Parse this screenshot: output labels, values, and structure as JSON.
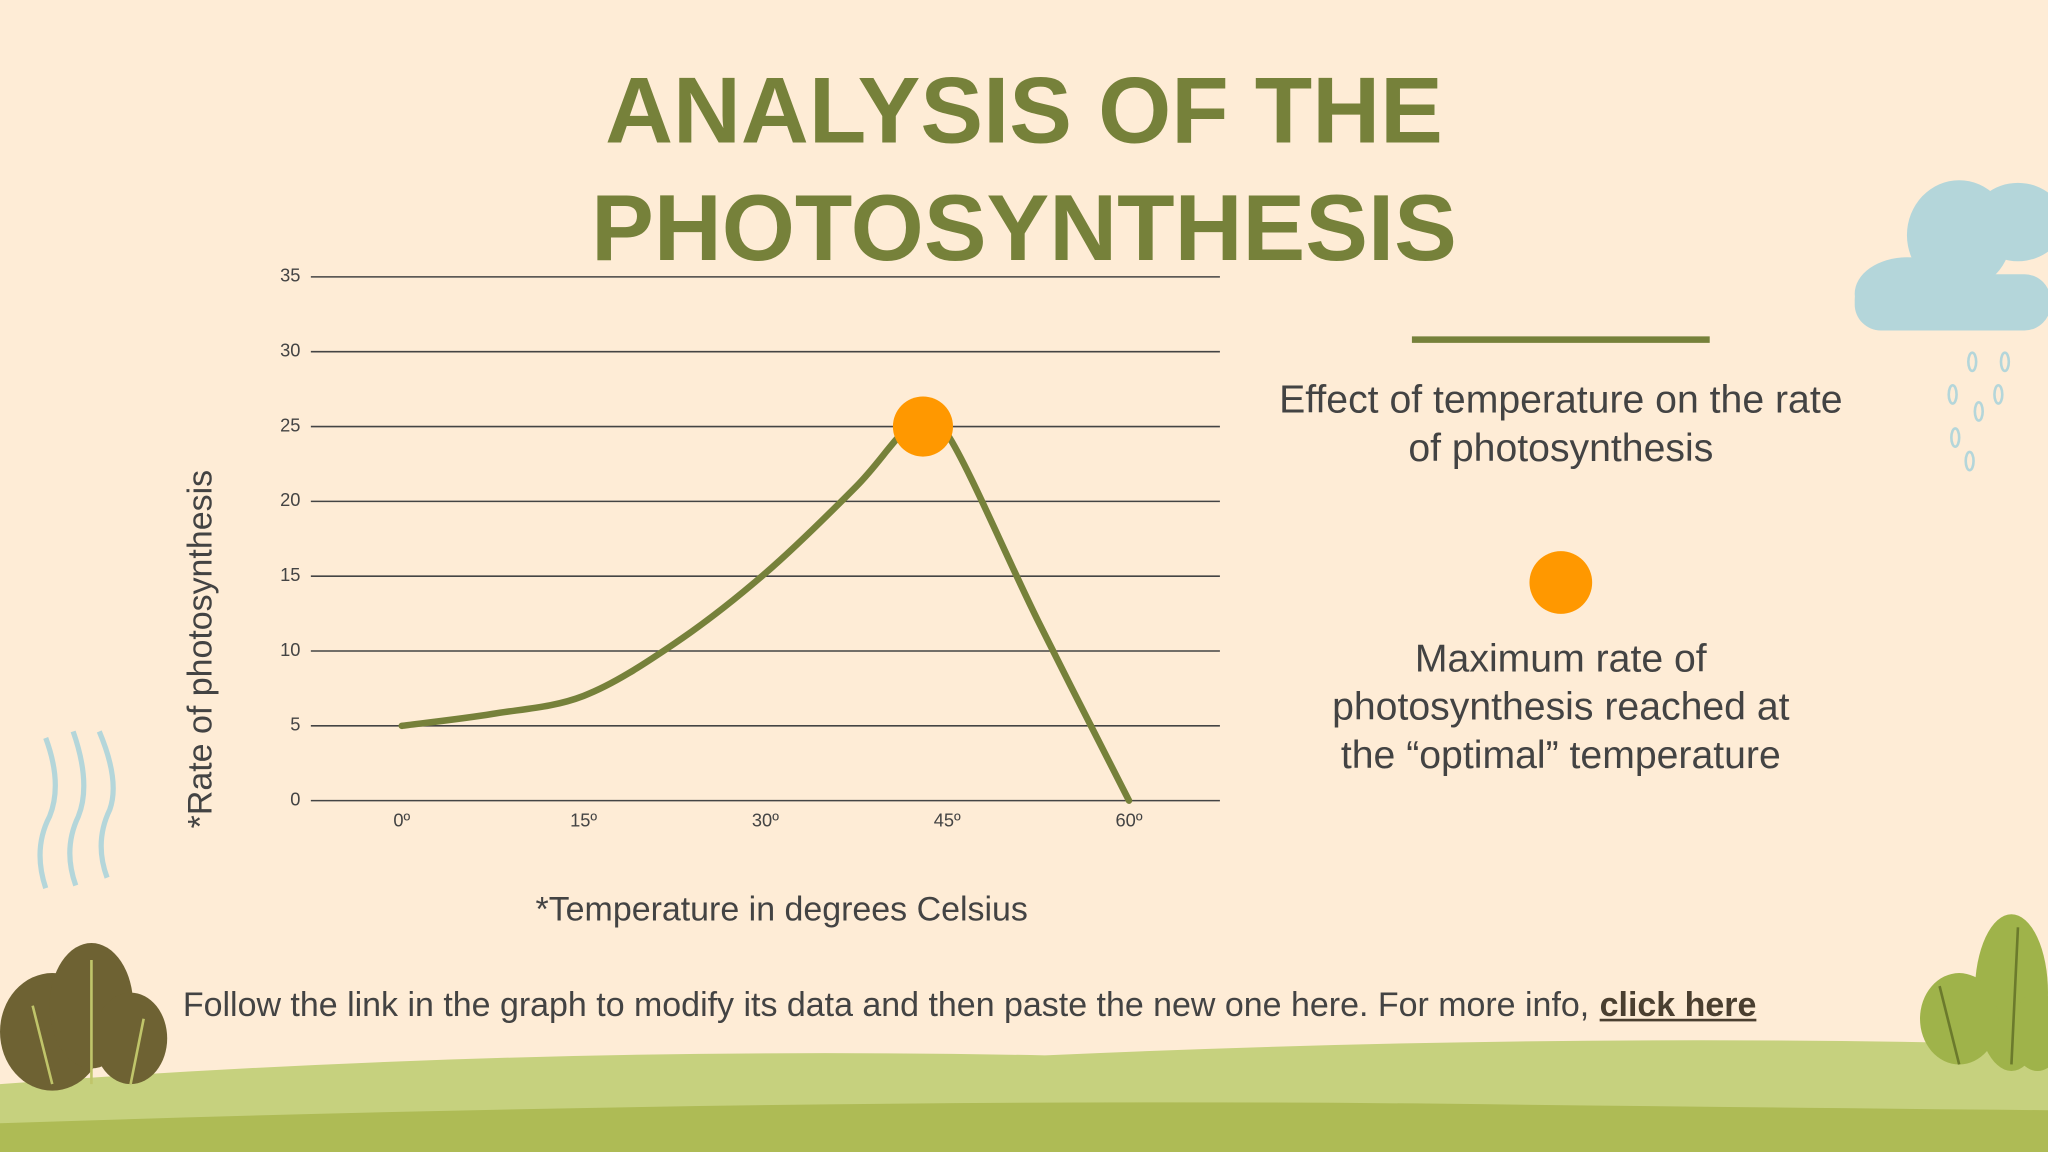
{
  "title": "ANALYSIS OF THE PHOTOSYNTHESIS",
  "chart_data": {
    "type": "line",
    "x_label": "*Temperature in degrees Celsius",
    "y_label": "*Rate of photosynthesis",
    "xlim": [
      -7.5,
      67.5
    ],
    "xticks": [
      {
        "value": 0,
        "label": "0º"
      },
      {
        "value": 15,
        "label": "15º"
      },
      {
        "value": 30,
        "label": "30º"
      },
      {
        "value": 45,
        "label": "45º"
      },
      {
        "value": 60,
        "label": "60º"
      }
    ],
    "ylim": [
      0,
      35
    ],
    "yticks": [
      0,
      5,
      10,
      15,
      20,
      25,
      30,
      35
    ],
    "grid": true,
    "series": [
      {
        "color": "#76813a",
        "x": [
          0,
          7.5,
          15,
          22.5,
          30,
          37.5,
          42,
          45,
          52.5,
          60
        ],
        "values": [
          5,
          5.8,
          7,
          10.5,
          15.2,
          21,
          25,
          24.5,
          12,
          0
        ]
      }
    ],
    "peak": {
      "x": 43,
      "y": 25,
      "color": "#ff9800"
    }
  },
  "legend": {
    "description": "Effect of temperature on the rate of photosynthesis",
    "marker_label": "Maximum rate of photosynthesis reached at the “optimal” temperature"
  },
  "footer": {
    "text": "Follow the link in the graph to modify its data and then paste the new one here. For more info,",
    "link": "click here"
  }
}
